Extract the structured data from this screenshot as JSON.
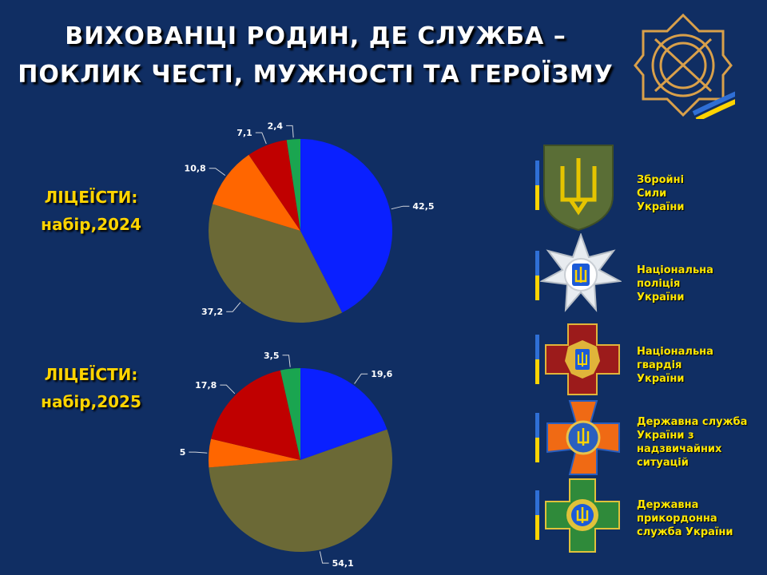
{
  "header": {
    "title_line1": "ВИХОВАНЦІ РОДИН, ДЕ СЛУЖБА –",
    "title_line2": "ПОКЛИК ЧЕСТІ, МУЖНОСТІ ТА ГЕРОЇЗМУ"
  },
  "labels": {
    "chart1_label_line1": "ЛІЦЕЇСТИ:",
    "chart1_label_line2": "набір,2024",
    "chart2_label_line1": "ЛІЦЕЇСТИ:",
    "chart2_label_line2": "набір,2025"
  },
  "colors": {
    "background": "#102e63",
    "title": "#ffffff",
    "accent_yellow": "#ffd400",
    "flag_blue": "#2f6fd6"
  },
  "chart_data": [
    {
      "type": "pie",
      "title": "",
      "start": "12 o'clock",
      "direction": "clockwise",
      "slices": [
        {
          "value": 42.5,
          "label": "42,5",
          "color": "#0a20ff"
        },
        {
          "value": 37.2,
          "label": "37,2",
          "color": "#6b6936"
        },
        {
          "value": 10.8,
          "label": "10,8",
          "color": "#ff6600"
        },
        {
          "value": 7.1,
          "label": "7,1",
          "color": "#c00000"
        },
        {
          "value": 2.4,
          "label": "2,4",
          "color": "#1aa550"
        }
      ]
    },
    {
      "type": "pie",
      "title": "",
      "start": "12 o'clock",
      "direction": "clockwise",
      "slices": [
        {
          "value": 19.6,
          "label": "19,6",
          "color": "#0a20ff"
        },
        {
          "value": 54.1,
          "label": "54,1",
          "color": "#6b6936"
        },
        {
          "value": 5,
          "label": "5",
          "color": "#ff6600"
        },
        {
          "value": 17.8,
          "label": "17,8",
          "color": "#c00000"
        },
        {
          "value": 3.5,
          "label": "3,5",
          "color": "#1aa550"
        }
      ]
    }
  ],
  "legend": {
    "agencies": [
      {
        "icon": "armed-forces-emblem",
        "lines": [
          "Збройні",
          "Сили",
          "України"
        ]
      },
      {
        "icon": "national-police-emblem",
        "lines": [
          "Національна",
          "поліція",
          "України"
        ]
      },
      {
        "icon": "national-guard-emblem",
        "lines": [
          "Національна",
          "гвардія",
          "України"
        ]
      },
      {
        "icon": "emergency-service-emblem",
        "lines": [
          "Державна служба",
          "України з",
          "надзвичайних",
          "ситуацій"
        ]
      },
      {
        "icon": "border-guard-emblem",
        "lines": [
          "Державна",
          "прикордонна",
          "служба України"
        ]
      }
    ]
  },
  "logo": {
    "icon": "lyceum-emblem"
  }
}
